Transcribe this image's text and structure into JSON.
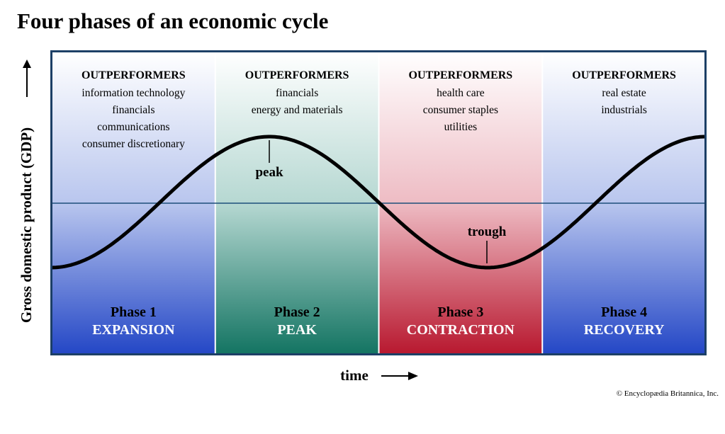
{
  "title": "Four phases of an economic cycle",
  "y_axis_label": "Gross domestic product (GDP)",
  "x_axis_label": "time",
  "credit": "© Encyclopædia Britannica, Inc.",
  "annotations": {
    "peak": "peak",
    "trough": "trough"
  },
  "phases": [
    {
      "heading": "OUTPERFORMERS",
      "sectors": [
        "information technology",
        "financials",
        "communications",
        "consumer discretionary"
      ],
      "label": "Phase 1",
      "name": "EXPANSION"
    },
    {
      "heading": "OUTPERFORMERS",
      "sectors": [
        "financials",
        "energy and materials"
      ],
      "label": "Phase 2",
      "name": "PEAK"
    },
    {
      "heading": "OUTPERFORMERS",
      "sectors": [
        "health care",
        "consumer staples",
        "utilities"
      ],
      "label": "Phase 3",
      "name": "CONTRACTION"
    },
    {
      "heading": "OUTPERFORMERS",
      "sectors": [
        "real estate",
        "industrials"
      ],
      "label": "Phase 4",
      "name": "RECOVERY"
    }
  ]
}
